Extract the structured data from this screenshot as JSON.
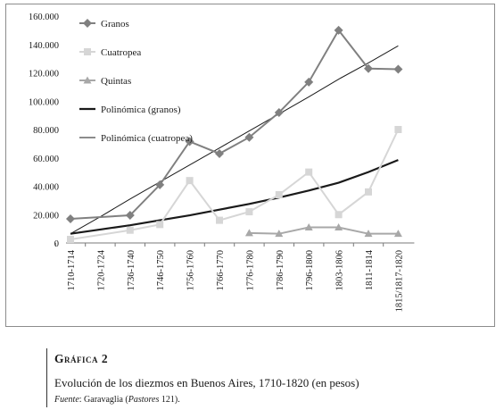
{
  "chart_data": {
    "type": "line",
    "categories": [
      "1710-1714",
      "1720-1724",
      "1736-1740",
      "1746-1750",
      "1756-1760",
      "1766-1770",
      "1776-1780",
      "1786-1790",
      "1796-1800",
      "1803-1806",
      "1811-1814",
      "1815/1817-1820"
    ],
    "ylim": [
      0,
      160000
    ],
    "yticks": [
      0,
      20000,
      40000,
      60000,
      80000,
      100000,
      120000,
      140000,
      160000
    ],
    "ytick_labels": [
      "0",
      "20.000",
      "40.000",
      "60.000",
      "80.000",
      "100.000",
      "120.000",
      "140.000",
      "160.000"
    ],
    "grid": false,
    "legend_position": "top-left, inside",
    "series": [
      {
        "name": "Granos",
        "marker": "diamond",
        "color": "#808080",
        "values": [
          17000,
          null,
          19500,
          41000,
          71500,
          63000,
          74500,
          92000,
          113500,
          150000,
          123000,
          122500
        ]
      },
      {
        "name": "Cuatropea",
        "marker": "square",
        "color": "#d6d6d6",
        "values": [
          2500,
          null,
          9000,
          13000,
          44000,
          16000,
          22000,
          34000,
          50000,
          20000,
          36000,
          80000
        ]
      },
      {
        "name": "Quintas",
        "marker": "triangle",
        "color": "#a8a8a8",
        "values": [
          null,
          null,
          null,
          null,
          null,
          null,
          7000,
          6500,
          11000,
          11000,
          6500,
          6500
        ]
      },
      {
        "name": "Polinómica (granos)",
        "trendline": true,
        "color": "#1a1a1a",
        "stroke": "thick"
      },
      {
        "name": "Polinómica (cuatropea)",
        "trendline": true,
        "color": "#1a1a1a",
        "stroke": "thin"
      }
    ],
    "trend_samples": {
      "Polinómica (granos)": [
        6500,
        9500,
        12500,
        16000,
        19500,
        23500,
        27500,
        32000,
        37000,
        42500,
        50000,
        58500
      ],
      "Polinómica (cuatropea)": [
        6500,
        18500,
        31000,
        43000,
        55000,
        67000,
        79000,
        91000,
        103000,
        115500,
        127000,
        139000
      ]
    }
  },
  "caption": {
    "label": "Gráfica 2",
    "title": "Evolución de los diezmos en Buenos Aires, 1710-1820 (en pesos)",
    "source_prefix": "Fuente",
    "source_mid": ": Garavaglia (",
    "source_work": "Pastores",
    "source_end": " 121)."
  }
}
